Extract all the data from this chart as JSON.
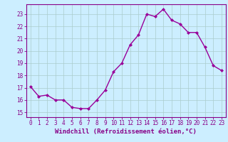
{
  "x": [
    0,
    1,
    2,
    3,
    4,
    5,
    6,
    7,
    8,
    9,
    10,
    11,
    12,
    13,
    14,
    15,
    16,
    17,
    18,
    19,
    20,
    21,
    22,
    23
  ],
  "y": [
    17.1,
    16.3,
    16.4,
    16.0,
    16.0,
    15.4,
    15.3,
    15.3,
    16.0,
    16.8,
    18.3,
    19.0,
    20.5,
    21.3,
    23.0,
    22.8,
    23.4,
    22.5,
    22.2,
    21.5,
    21.5,
    20.3,
    18.8,
    18.4
  ],
  "line_color": "#990099",
  "marker": "D",
  "marker_size": 2,
  "linewidth": 1.0,
  "bg_color": "#cceeff",
  "grid_color": "#aacccc",
  "ylabel_ticks": [
    15,
    16,
    17,
    18,
    19,
    20,
    21,
    22,
    23
  ],
  "ylim": [
    14.6,
    23.8
  ],
  "xlim": [
    -0.5,
    23.5
  ],
  "xticks": [
    0,
    1,
    2,
    3,
    4,
    5,
    6,
    7,
    8,
    9,
    10,
    11,
    12,
    13,
    14,
    15,
    16,
    17,
    18,
    19,
    20,
    21,
    22,
    23
  ],
  "tick_color": "#880088",
  "tick_fontsize": 5.5,
  "xlabel": "Windchill (Refroidissement éolien,°C)",
  "xlabel_fontsize": 6.5
}
